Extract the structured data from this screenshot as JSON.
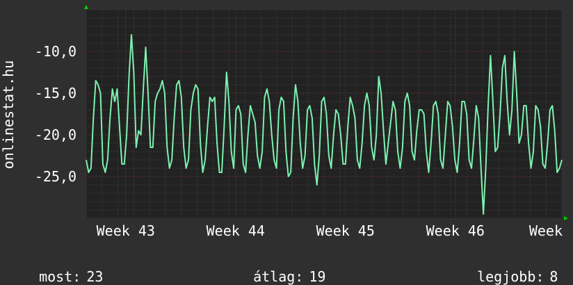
{
  "chart_data": {
    "type": "line",
    "ylabel": "onlinestat.hu",
    "ylim": [
      -30,
      -5
    ],
    "y_ticks": [
      "-10,0",
      "-15,0",
      "-20,0",
      "-25,0"
    ],
    "y_tick_values": [
      -10,
      -15,
      -20,
      -25
    ],
    "x_labels": [
      "Week 43",
      "Week 44",
      "Week 45",
      "Week 46",
      "Week"
    ],
    "x_label_positions": [
      0.083,
      0.314,
      0.545,
      0.776,
      1.0
    ],
    "grid": true,
    "series": [
      {
        "values": [
          -23.0,
          -24.5,
          -24.0,
          -18.0,
          -13.5,
          -14.0,
          -15.0,
          -23.5,
          -24.5,
          -23.0,
          -18.0,
          -14.5,
          -16.0,
          -14.5,
          -19.0,
          -23.5,
          -23.5,
          -20.0,
          -13.0,
          -8.0,
          -12.5,
          -21.5,
          -19.5,
          -20.0,
          -14.5,
          -9.5,
          -15.0,
          -21.5,
          -21.5,
          -16.0,
          -15.0,
          -14.5,
          -13.5,
          -15.0,
          -21.5,
          -24.0,
          -23.0,
          -18.0,
          -14.0,
          -13.5,
          -15.5,
          -21.5,
          -24.0,
          -23.0,
          -17.0,
          -15.0,
          -14.0,
          -14.5,
          -21.0,
          -24.5,
          -23.0,
          -19.0,
          -15.5,
          -16.0,
          -15.5,
          -21.0,
          -24.5,
          -24.5,
          -19.0,
          -12.5,
          -16.0,
          -22.0,
          -24.0,
          -17.0,
          -16.5,
          -17.5,
          -23.5,
          -24.5,
          -20.0,
          -16.5,
          -17.5,
          -18.5,
          -22.5,
          -24.0,
          -22.0,
          -15.5,
          -14.5,
          -16.0,
          -20.0,
          -23.0,
          -24.0,
          -17.0,
          -15.5,
          -16.0,
          -22.0,
          -25.0,
          -24.5,
          -18.0,
          -14.0,
          -16.0,
          -21.0,
          -24.0,
          -22.5,
          -17.0,
          -16.5,
          -18.0,
          -23.5,
          -26.0,
          -22.5,
          -16.0,
          -15.5,
          -17.5,
          -22.5,
          -24.0,
          -20.0,
          -17.0,
          -17.5,
          -20.0,
          -23.5,
          -23.5,
          -19.0,
          -15.5,
          -16.5,
          -18.0,
          -23.0,
          -24.0,
          -21.0,
          -16.5,
          -15.0,
          -16.5,
          -21.5,
          -23.0,
          -20.0,
          -13.0,
          -15.0,
          -19.5,
          -23.5,
          -21.0,
          -18.5,
          -16.0,
          -17.0,
          -22.0,
          -24.0,
          -21.5,
          -16.0,
          -15.0,
          -16.5,
          -22.0,
          -23.0,
          -19.5,
          -17.0,
          -17.0,
          -17.5,
          -22.0,
          -24.5,
          -21.0,
          -16.5,
          -16.0,
          -17.5,
          -23.0,
          -24.0,
          -20.0,
          -16.0,
          -16.5,
          -19.0,
          -23.0,
          -24.5,
          -21.0,
          -16.0,
          -16.0,
          -17.5,
          -23.0,
          -24.0,
          -20.5,
          -16.5,
          -18.0,
          -24.0,
          -29.5,
          -24.0,
          -16.5,
          -10.5,
          -16.0,
          -22.0,
          -21.5,
          -17.5,
          -12.0,
          -10.5,
          -16.0,
          -20.0,
          -17.0,
          -10.0,
          -15.0,
          -21.0,
          -20.0,
          -16.5,
          -16.5,
          -21.0,
          -24.0,
          -22.0,
          -16.5,
          -17.0,
          -19.0,
          -23.5,
          -24.0,
          -21.0,
          -17.0,
          -16.5,
          -19.5,
          -24.5,
          -24.0,
          -23.0
        ]
      }
    ]
  },
  "legend": {
    "current_label": "most:",
    "current_value": "23",
    "average_label": "átlag:",
    "average_value": "19",
    "best_label": "legjobb:",
    "best_value": "8"
  },
  "colors": {
    "background": "#2f2f2f",
    "plot_background": "#222222",
    "grid_major": "#7a3a3a",
    "grid_minor": "#444444",
    "line": "#7cf2b0",
    "axis_arrow": "#00cc00"
  }
}
